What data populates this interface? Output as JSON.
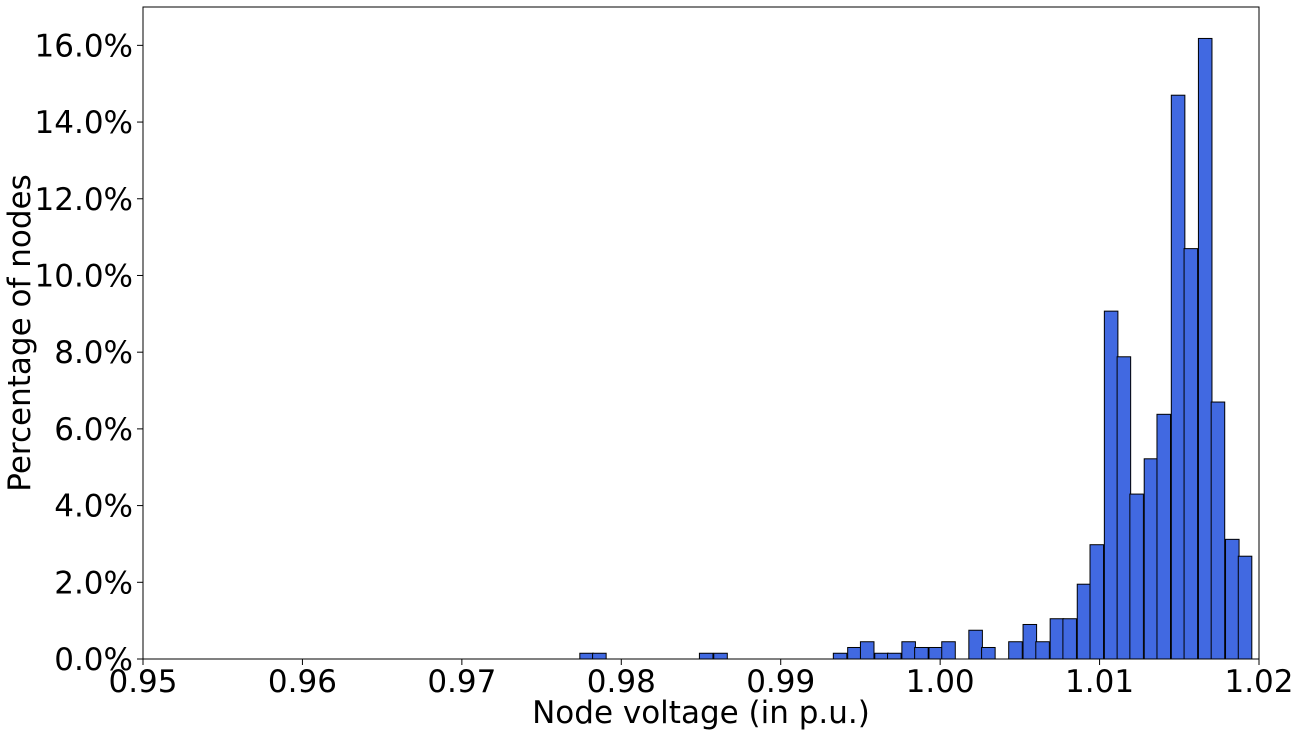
{
  "chart_data": {
    "type": "bar",
    "title": "",
    "xlabel": "Node voltage (in p.u.)",
    "ylabel": "Percentage of nodes",
    "xlim": [
      0.95,
      1.02
    ],
    "ylim": [
      0,
      17
    ],
    "grid": false,
    "bar_color": "#4169e1",
    "edge_color": "#000000",
    "bin_width": 0.00085,
    "x_ticks": [
      0.95,
      0.96,
      0.97,
      0.98,
      0.99,
      1.0,
      1.01,
      1.02
    ],
    "x_tick_labels": [
      "0.95",
      "0.96",
      "0.97",
      "0.98",
      "0.99",
      "1.00",
      "1.01",
      "1.02"
    ],
    "y_ticks": [
      0,
      2,
      4,
      6,
      8,
      10,
      12,
      14,
      16
    ],
    "y_tick_labels": [
      "0.0%",
      "2.0%",
      "4.0%",
      "6.0%",
      "8.0%",
      "10.0%",
      "12.0%",
      "14.0%",
      "16.0%"
    ],
    "bins": [
      {
        "x": 0.9774,
        "y": 0.15
      },
      {
        "x": 0.9782,
        "y": 0.15
      },
      {
        "x": 0.9849,
        "y": 0.15
      },
      {
        "x": 0.9858,
        "y": 0.15
      },
      {
        "x": 0.9933,
        "y": 0.15
      },
      {
        "x": 0.9942,
        "y": 0.3
      },
      {
        "x": 0.995,
        "y": 0.45
      },
      {
        "x": 0.9959,
        "y": 0.15
      },
      {
        "x": 0.9967,
        "y": 0.15
      },
      {
        "x": 0.9976,
        "y": 0.45
      },
      {
        "x": 0.9984,
        "y": 0.3
      },
      {
        "x": 0.9993,
        "y": 0.3
      },
      {
        "x": 1.0001,
        "y": 0.45
      },
      {
        "x": 1.0018,
        "y": 0.75
      },
      {
        "x": 1.0026,
        "y": 0.3
      },
      {
        "x": 1.0043,
        "y": 0.45
      },
      {
        "x": 1.0052,
        "y": 0.9
      },
      {
        "x": 1.006,
        "y": 0.45
      },
      {
        "x": 1.0069,
        "y": 1.05
      },
      {
        "x": 1.0077,
        "y": 1.05
      },
      {
        "x": 1.0086,
        "y": 1.95
      },
      {
        "x": 1.0094,
        "y": 2.98
      },
      {
        "x": 1.0103,
        "y": 9.07
      },
      {
        "x": 1.0111,
        "y": 7.88
      },
      {
        "x": 1.0119,
        "y": 4.3
      },
      {
        "x": 1.0128,
        "y": 5.22
      },
      {
        "x": 1.0136,
        "y": 6.38
      },
      {
        "x": 1.0145,
        "y": 14.7
      },
      {
        "x": 1.0153,
        "y": 10.7
      },
      {
        "x": 1.0162,
        "y": 16.18
      },
      {
        "x": 1.017,
        "y": 6.7
      },
      {
        "x": 1.0179,
        "y": 3.12
      },
      {
        "x": 1.0187,
        "y": 2.68
      }
    ]
  }
}
